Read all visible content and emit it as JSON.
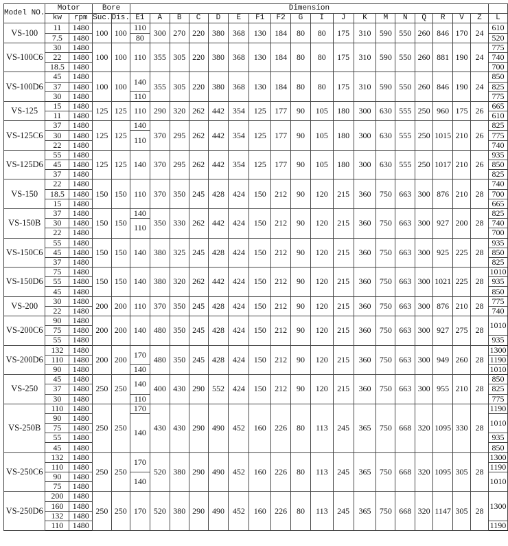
{
  "header": {
    "model": "Model NO.",
    "motor": "Motor",
    "bore": "Bore",
    "dimension": "Dimension",
    "kw": "kw",
    "rpm": "rpm",
    "suc": "Suc.",
    "dis": "Dis.",
    "e1": "E1",
    "dims": [
      "A",
      "B",
      "C",
      "D",
      "E",
      "F1",
      "F2",
      "G",
      "I",
      "J",
      "K",
      "M",
      "N",
      "Q",
      "R",
      "V",
      "Z"
    ],
    "l": "L"
  },
  "rows": [
    {
      "model": "VS-100",
      "kw": [
        "11",
        "7.5"
      ],
      "rpm": [
        "1480",
        "1480"
      ],
      "suc": "100",
      "dis": "100",
      "e1": [
        {
          "v": "110",
          "span": 1
        },
        {
          "v": "80",
          "span": 1
        }
      ],
      "dims": [
        "300",
        "270",
        "220",
        "380",
        "368",
        "130",
        "184",
        "80",
        "80",
        "175",
        "310",
        "590",
        "550",
        "260",
        "846",
        "170",
        "24"
      ],
      "l": [
        {
          "v": "610",
          "span": 1
        },
        {
          "v": "520",
          "span": 1
        }
      ]
    },
    {
      "model": "VS-100C6",
      "kw": [
        "30",
        "22",
        "18.5"
      ],
      "rpm": [
        "1480",
        "1480",
        "1480"
      ],
      "suc": "100",
      "dis": "100",
      "e1": [
        {
          "v": "110",
          "span": 3
        }
      ],
      "dims": [
        "355",
        "305",
        "220",
        "380",
        "368",
        "130",
        "184",
        "80",
        "80",
        "175",
        "310",
        "590",
        "550",
        "260",
        "881",
        "190",
        "24"
      ],
      "l": [
        {
          "v": "775",
          "span": 1
        },
        {
          "v": "740",
          "span": 1
        },
        {
          "v": "700",
          "span": 1
        }
      ]
    },
    {
      "model": "VS-100D6",
      "kw": [
        "45",
        "37",
        "30"
      ],
      "rpm": [
        "1480",
        "1480",
        "1480"
      ],
      "suc": "100",
      "dis": "100",
      "e1": [
        {
          "v": "140",
          "span": 2
        },
        {
          "v": "110",
          "span": 1
        }
      ],
      "dims": [
        "355",
        "305",
        "220",
        "380",
        "368",
        "130",
        "184",
        "80",
        "80",
        "175",
        "310",
        "590",
        "550",
        "260",
        "846",
        "190",
        "24"
      ],
      "l": [
        {
          "v": "850",
          "span": 1
        },
        {
          "v": "825",
          "span": 1
        },
        {
          "v": "775",
          "span": 1
        }
      ]
    },
    {
      "model": "VS-125",
      "kw": [
        "15",
        "11"
      ],
      "rpm": [
        "1480",
        "1480"
      ],
      "suc": "125",
      "dis": "125",
      "e1": [
        {
          "v": "110",
          "span": 2
        }
      ],
      "dims": [
        "290",
        "320",
        "262",
        "442",
        "354",
        "125",
        "177",
        "90",
        "105",
        "180",
        "300",
        "630",
        "555",
        "250",
        "960",
        "175",
        "26"
      ],
      "l": [
        {
          "v": "665",
          "span": 1
        },
        {
          "v": "610",
          "span": 1
        }
      ]
    },
    {
      "model": "VS-125C6",
      "kw": [
        "37",
        "30",
        "22"
      ],
      "rpm": [
        "1480",
        "1480",
        "1480"
      ],
      "suc": "125",
      "dis": "125",
      "e1": [
        {
          "v": "140",
          "span": 1
        },
        {
          "v": "110",
          "span": 2
        }
      ],
      "dims": [
        "370",
        "295",
        "262",
        "442",
        "354",
        "125",
        "177",
        "90",
        "105",
        "180",
        "300",
        "630",
        "555",
        "250",
        "1015",
        "210",
        "26"
      ],
      "l": [
        {
          "v": "825",
          "span": 1
        },
        {
          "v": "775",
          "span": 1
        },
        {
          "v": "740",
          "span": 1
        }
      ]
    },
    {
      "model": "VS-125D6",
      "kw": [
        "55",
        "45",
        "37"
      ],
      "rpm": [
        "1480",
        "1480",
        "1480"
      ],
      "suc": "125",
      "dis": "125",
      "e1": [
        {
          "v": "140",
          "span": 3
        }
      ],
      "dims": [
        "370",
        "295",
        "262",
        "442",
        "354",
        "125",
        "177",
        "90",
        "105",
        "180",
        "300",
        "630",
        "555",
        "250",
        "1017",
        "210",
        "26"
      ],
      "l": [
        {
          "v": "935",
          "span": 1
        },
        {
          "v": "850",
          "span": 1
        },
        {
          "v": "825",
          "span": 1
        }
      ]
    },
    {
      "model": "VS-150",
      "kw": [
        "22",
        "18.5",
        "15"
      ],
      "rpm": [
        "1480",
        "1480",
        "1480"
      ],
      "suc": "150",
      "dis": "150",
      "e1": [
        {
          "v": "110",
          "span": 3
        }
      ],
      "dims": [
        "370",
        "350",
        "245",
        "428",
        "424",
        "150",
        "212",
        "90",
        "120",
        "215",
        "360",
        "750",
        "663",
        "300",
        "876",
        "210",
        "28"
      ],
      "l": [
        {
          "v": "740",
          "span": 1
        },
        {
          "v": "700",
          "span": 1
        },
        {
          "v": "665",
          "span": 1
        }
      ]
    },
    {
      "model": "VS-150B",
      "kw": [
        "37",
        "30",
        "22"
      ],
      "rpm": [
        "1480",
        "1480",
        "1480"
      ],
      "suc": "150",
      "dis": "150",
      "e1": [
        {
          "v": "140",
          "span": 1
        },
        {
          "v": "110",
          "span": 2
        }
      ],
      "dims": [
        "350",
        "330",
        "262",
        "442",
        "424",
        "150",
        "212",
        "90",
        "120",
        "215",
        "360",
        "750",
        "663",
        "300",
        "927",
        "200",
        "28"
      ],
      "l": [
        {
          "v": "825",
          "span": 1
        },
        {
          "v": "740",
          "span": 1
        },
        {
          "v": "700",
          "span": 1
        }
      ]
    },
    {
      "model": "VS-150C6",
      "kw": [
        "55",
        "45",
        "37"
      ],
      "rpm": [
        "1480",
        "1480",
        "1480"
      ],
      "suc": "150",
      "dis": "150",
      "e1": [
        {
          "v": "140",
          "span": 3
        }
      ],
      "dims": [
        "380",
        "325",
        "245",
        "428",
        "424",
        "150",
        "212",
        "90",
        "120",
        "215",
        "360",
        "750",
        "663",
        "300",
        "925",
        "225",
        "28"
      ],
      "l": [
        {
          "v": "935",
          "span": 1
        },
        {
          "v": "850",
          "span": 1
        },
        {
          "v": "825",
          "span": 1
        }
      ]
    },
    {
      "model": "VS-150D6",
      "kw": [
        "75",
        "55",
        "45"
      ],
      "rpm": [
        "1480",
        "1480",
        "1480"
      ],
      "suc": "150",
      "dis": "150",
      "e1": [
        {
          "v": "140",
          "span": 3
        }
      ],
      "dims": [
        "380",
        "320",
        "262",
        "442",
        "424",
        "150",
        "212",
        "90",
        "120",
        "215",
        "360",
        "750",
        "663",
        "300",
        "1021",
        "225",
        "28"
      ],
      "l": [
        {
          "v": "1010",
          "span": 1
        },
        {
          "v": "935",
          "span": 1
        },
        {
          "v": "850",
          "span": 1
        }
      ]
    },
    {
      "model": "VS-200",
      "kw": [
        "30",
        "22"
      ],
      "rpm": [
        "1480",
        "1480"
      ],
      "suc": "200",
      "dis": "200",
      "e1": [
        {
          "v": "110",
          "span": 2
        }
      ],
      "dims": [
        "370",
        "350",
        "245",
        "428",
        "424",
        "150",
        "212",
        "90",
        "120",
        "215",
        "360",
        "750",
        "663",
        "300",
        "876",
        "210",
        "28"
      ],
      "l": [
        {
          "v": "775",
          "span": 1
        },
        {
          "v": "740",
          "span": 1
        }
      ]
    },
    {
      "model": "VS-200C6",
      "kw": [
        "90",
        "75",
        "55"
      ],
      "rpm": [
        "1480",
        "1480",
        "1480"
      ],
      "suc": "200",
      "dis": "200",
      "e1": [
        {
          "v": "140",
          "span": 3
        }
      ],
      "dims": [
        "480",
        "350",
        "245",
        "428",
        "424",
        "150",
        "212",
        "90",
        "120",
        "215",
        "360",
        "750",
        "663",
        "300",
        "927",
        "275",
        "28"
      ],
      "l": [
        {
          "v": "1010",
          "span": 2
        },
        {
          "v": "935",
          "span": 1
        }
      ]
    },
    {
      "model": "VS-200D6",
      "kw": [
        "132",
        "110",
        "90"
      ],
      "rpm": [
        "1480",
        "1480",
        "1480"
      ],
      "suc": "200",
      "dis": "200",
      "e1": [
        {
          "v": "170",
          "span": 2
        },
        {
          "v": "140",
          "span": 1
        }
      ],
      "dims": [
        "480",
        "350",
        "245",
        "428",
        "424",
        "150",
        "212",
        "90",
        "120",
        "215",
        "360",
        "750",
        "663",
        "300",
        "949",
        "260",
        "28"
      ],
      "l": [
        {
          "v": "1300",
          "span": 1
        },
        {
          "v": "1190",
          "span": 1
        },
        {
          "v": "1010",
          "span": 1
        }
      ]
    },
    {
      "model": "VS-250",
      "kw": [
        "45",
        "37",
        "30"
      ],
      "rpm": [
        "1480",
        "1480",
        "1480"
      ],
      "suc": "250",
      "dis": "250",
      "e1": [
        {
          "v": "140",
          "span": 2
        },
        {
          "v": "110",
          "span": 1
        }
      ],
      "dims": [
        "400",
        "430",
        "290",
        "552",
        "424",
        "150",
        "212",
        "90",
        "120",
        "215",
        "360",
        "750",
        "663",
        "300",
        "955",
        "210",
        "28"
      ],
      "l": [
        {
          "v": "850",
          "span": 1
        },
        {
          "v": "825",
          "span": 1
        },
        {
          "v": "775",
          "span": 1
        }
      ]
    },
    {
      "model": "VS-250B",
      "kw": [
        "110",
        "90",
        "75",
        "55",
        "45"
      ],
      "rpm": [
        "1480",
        "1480",
        "1480",
        "1480",
        "1480"
      ],
      "suc": "250",
      "dis": "250",
      "e1": [
        {
          "v": "170",
          "span": 1
        },
        {
          "v": "140",
          "span": 4
        }
      ],
      "dims": [
        "430",
        "430",
        "290",
        "490",
        "452",
        "160",
        "226",
        "80",
        "113",
        "245",
        "365",
        "750",
        "668",
        "320",
        "1095",
        "330",
        "28"
      ],
      "l": [
        {
          "v": "1190",
          "span": 1
        },
        {
          "v": "1010",
          "span": 2
        },
        {
          "v": "935",
          "span": 1
        },
        {
          "v": "850",
          "span": 1
        }
      ]
    },
    {
      "model": "VS-250C6",
      "kw": [
        "132",
        "110",
        "90",
        "75"
      ],
      "rpm": [
        "1480",
        "1480",
        "1480",
        "1480"
      ],
      "suc": "250",
      "dis": "250",
      "e1": [
        {
          "v": "170",
          "span": 2
        },
        {
          "v": "140",
          "span": 2
        }
      ],
      "dims": [
        "520",
        "380",
        "290",
        "490",
        "452",
        "160",
        "226",
        "80",
        "113",
        "245",
        "365",
        "750",
        "668",
        "320",
        "1095",
        "305",
        "28"
      ],
      "l": [
        {
          "v": "1300",
          "span": 1
        },
        {
          "v": "1190",
          "span": 1
        },
        {
          "v": "1010",
          "span": 2
        }
      ]
    },
    {
      "model": "VS-250D6",
      "kw": [
        "200",
        "160",
        "132",
        "110"
      ],
      "rpm": [
        "1480",
        "1480",
        "1480",
        "1480"
      ],
      "suc": "250",
      "dis": "250",
      "e1": [
        {
          "v": "170",
          "span": 4
        }
      ],
      "dims": [
        "520",
        "380",
        "290",
        "490",
        "452",
        "160",
        "226",
        "80",
        "113",
        "245",
        "365",
        "750",
        "668",
        "320",
        "1147",
        "305",
        "28"
      ],
      "l": [
        {
          "v": "1300",
          "span": 3
        },
        {
          "v": "1190",
          "span": 1
        }
      ]
    }
  ]
}
